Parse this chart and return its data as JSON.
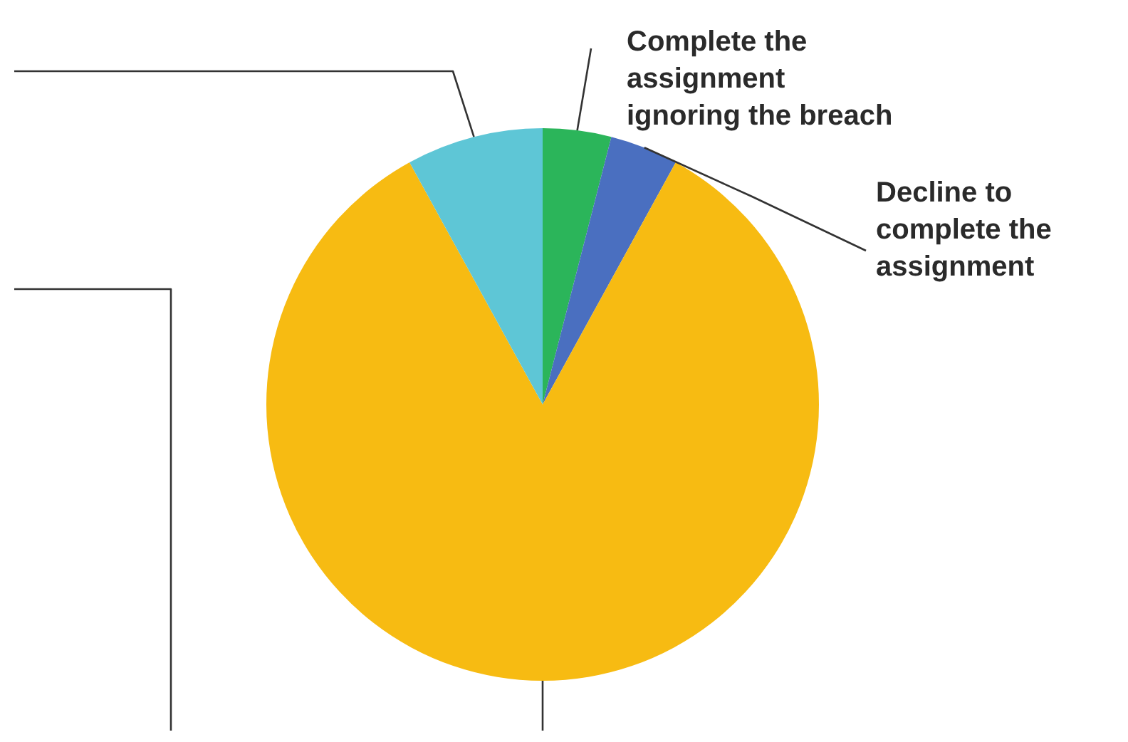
{
  "chart_data": {
    "type": "pie",
    "categories": [
      "Complete the assignment ignoring the breach",
      "Decline to complete the assignment",
      null,
      null
    ],
    "values": [
      4,
      4,
      84,
      8
    ],
    "colors": [
      "#2bb55a",
      "#4a6fc0",
      "#f7bb12",
      "#5ec6d6"
    ],
    "legend": false
  }
}
